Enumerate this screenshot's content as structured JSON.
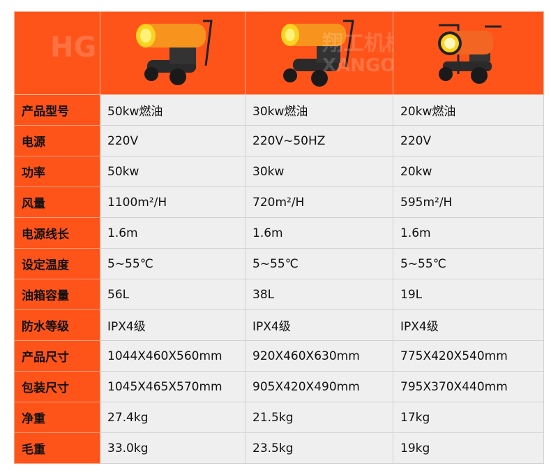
{
  "watermark": {
    "cn": "翔工机械",
    "en": "XANGON"
  },
  "colors": {
    "accent": "#ff5419",
    "cell": "#efefef"
  },
  "products": [
    {
      "image": "50kw-oil-heater"
    },
    {
      "image": "30kw-oil-heater"
    },
    {
      "image": "20kw-oil-heater"
    }
  ],
  "rows": [
    {
      "label": "产品型号",
      "values": [
        "50kw燃油",
        "30kw燃油",
        "20kw燃油"
      ]
    },
    {
      "label": "电源",
      "values": [
        "220V",
        "220V~50HZ",
        "220V"
      ]
    },
    {
      "label": "功率",
      "values": [
        "50kw",
        "30kw",
        "20kw"
      ]
    },
    {
      "label": "风量",
      "values": [
        "1100m²/H",
        "720m²/H",
        "595m²/H"
      ]
    },
    {
      "label": "电源线长",
      "values": [
        "1.6m",
        "1.6m",
        "1.6m"
      ]
    },
    {
      "label": "设定温度",
      "values": [
        "5~55℃",
        "5~55℃",
        "5~55℃"
      ]
    },
    {
      "label": "油箱容量",
      "values": [
        "56L",
        "38L",
        "19L"
      ]
    },
    {
      "label": "防水等级",
      "values": [
        "IPX4级",
        "IPX4级",
        "IPX4级"
      ]
    },
    {
      "label": "产品尺寸",
      "values": [
        "1044X460X560mm",
        "920X460X630mm",
        "775X420X540mm"
      ]
    },
    {
      "label": "包装尺寸",
      "values": [
        "1045X465X570mm",
        "905X420X490mm",
        "795X370X440mm"
      ]
    },
    {
      "label": "净重",
      "values": [
        "27.4kg",
        "21.5kg",
        "17kg"
      ]
    },
    {
      "label": "毛重",
      "values": [
        "33.0kg",
        "23.5kg",
        "19kg"
      ]
    }
  ]
}
